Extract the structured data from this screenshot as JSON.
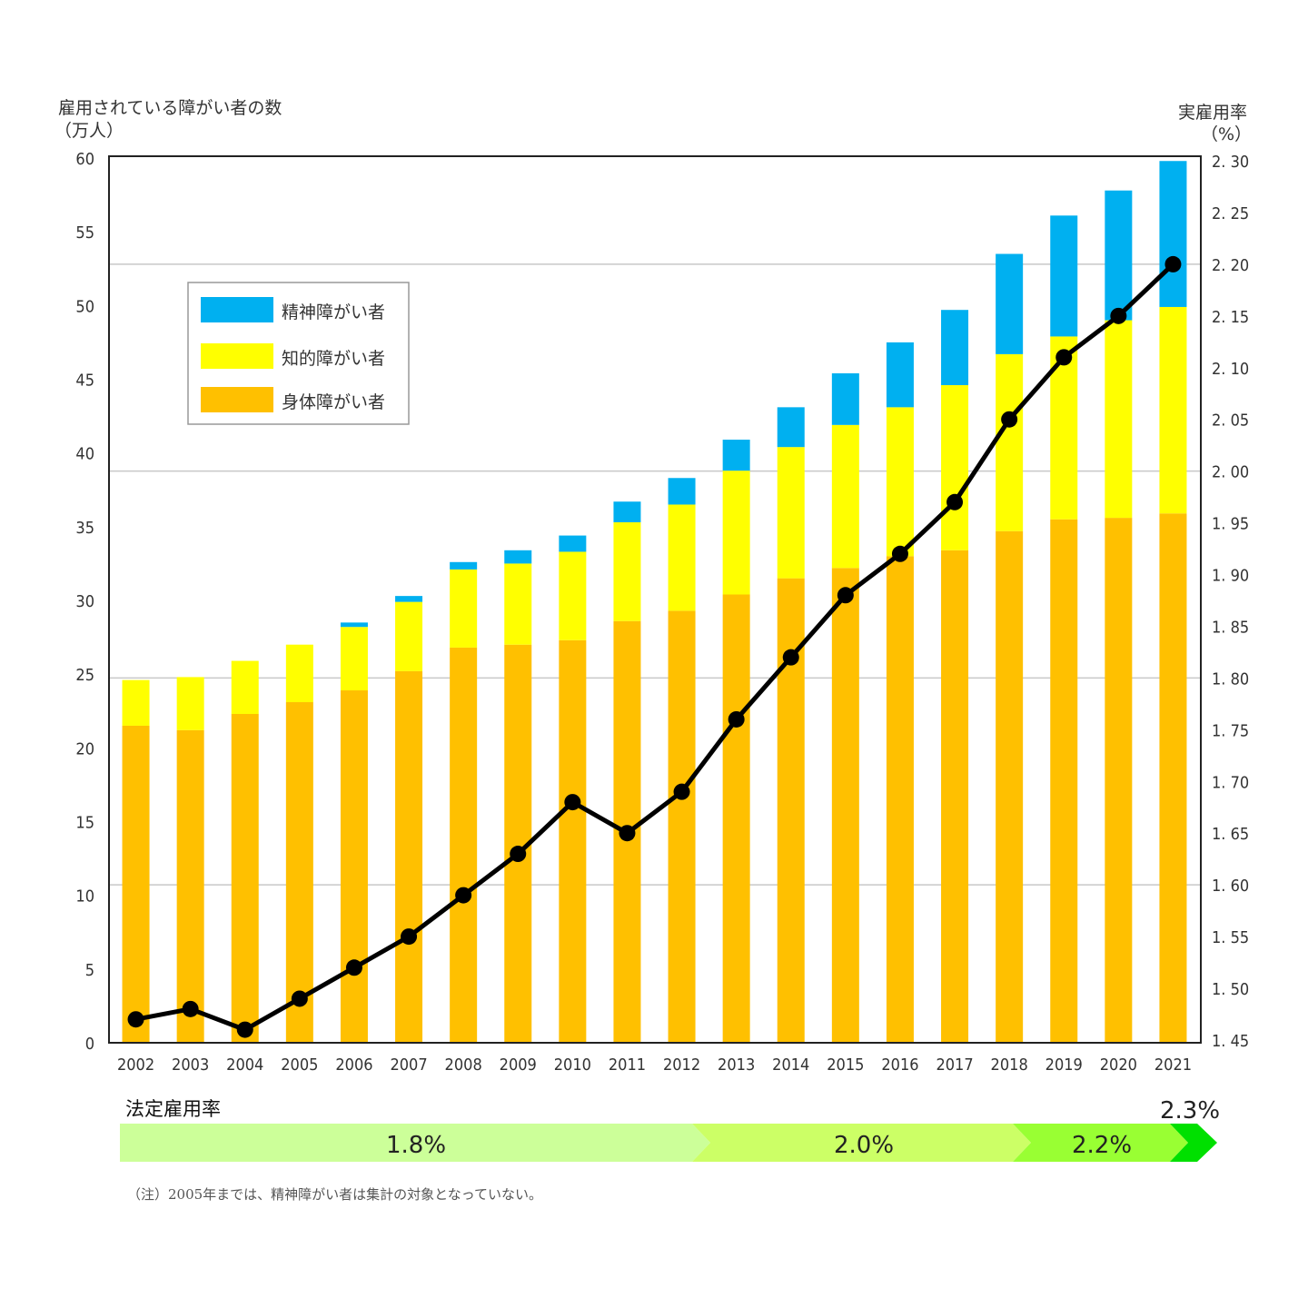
{
  "chart_data": {
    "type": "bar",
    "stacked": true,
    "categories": [
      "2002",
      "2003",
      "2004",
      "2005",
      "2006",
      "2007",
      "2008",
      "2009",
      "2010",
      "2011",
      "2012",
      "2013",
      "2014",
      "2015",
      "2016",
      "2017",
      "2018",
      "2019",
      "2020",
      "2021"
    ],
    "series": [
      {
        "name": "身体障がい者",
        "color": "#ffc000",
        "axis": "left",
        "values": [
          21.5,
          21.2,
          22.3,
          23.1,
          23.9,
          25.2,
          26.8,
          27.0,
          27.3,
          28.6,
          29.3,
          30.4,
          31.5,
          32.2,
          33.0,
          33.4,
          34.7,
          35.5,
          35.6,
          35.9
        ]
      },
      {
        "name": "知的障がい者",
        "color": "#ffff00",
        "axis": "left",
        "values": [
          3.1,
          3.6,
          3.6,
          3.9,
          4.3,
          4.7,
          5.3,
          5.5,
          6.0,
          6.7,
          7.2,
          8.4,
          8.9,
          9.7,
          10.1,
          11.2,
          12.0,
          12.4,
          13.4,
          14.0
        ]
      },
      {
        "name": "精神障がい者",
        "color": "#00b0f0",
        "axis": "left",
        "values": [
          0,
          0,
          0,
          0,
          0.3,
          0.4,
          0.5,
          0.9,
          1.1,
          1.4,
          1.8,
          2.1,
          2.7,
          3.5,
          4.4,
          5.1,
          6.8,
          8.2,
          8.8,
          9.9
        ]
      },
      {
        "name": "実雇用率",
        "type": "line",
        "color": "#000000",
        "axis": "right",
        "values": [
          1.47,
          1.48,
          1.46,
          1.49,
          1.52,
          1.55,
          1.59,
          1.63,
          1.68,
          1.65,
          1.69,
          1.76,
          1.82,
          1.88,
          1.92,
          1.97,
          2.05,
          2.11,
          2.15,
          2.2
        ]
      }
    ],
    "legend_order": [
      "精神障がい者",
      "知的障がい者",
      "身体障がい者"
    ],
    "legend_position": "top-left (inside plot)",
    "ylabel": "雇用されている障がい者の数",
    "ylabel_unit": "（万人）",
    "ylim": [
      0,
      60
    ],
    "yticks": [
      "0",
      "5",
      "10",
      "15",
      "20",
      "25",
      "30",
      "35",
      "40",
      "45",
      "50",
      "55",
      "60"
    ],
    "y2label": "実雇用率",
    "y2label_unit": "（%）",
    "y2lim": [
      1.45,
      2.3
    ],
    "y2ticks": [
      "1. 45",
      "1. 50",
      "1. 55",
      "1. 60",
      "1. 65",
      "1. 70",
      "1. 75",
      "1. 80",
      "1. 85",
      "1. 90",
      "1. 95",
      "2. 00",
      "2. 05",
      "2. 10",
      "2. 15",
      "2. 20",
      "2. 25",
      "2. 30"
    ],
    "gridlines_y2": [
      1.6,
      1.8,
      2.0,
      2.2
    ],
    "grid": true
  },
  "legal_rate": {
    "title": "法定雇用率",
    "segments": [
      {
        "label": "1.8%",
        "from": "2002",
        "to": "2012",
        "color": "#ccff99"
      },
      {
        "label": "2.0%",
        "from": "2013",
        "to": "2017",
        "color": "#ccff66"
      },
      {
        "label": "2.2%",
        "from": "2018",
        "to": "2020",
        "color": "#99ff33"
      },
      {
        "label": "2.3%",
        "from": "2021",
        "to": "2021",
        "color": "#00e000"
      }
    ]
  },
  "note": "（注）2005年までは、精神障がい者は集計の対象となっていない。"
}
